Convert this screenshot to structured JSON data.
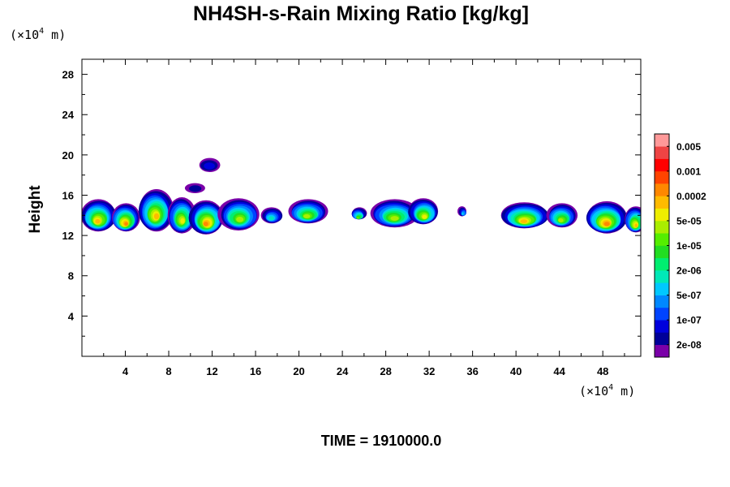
{
  "chart_data": {
    "type": "heatmap",
    "title": "NH4SH-s-Rain Mixing Ratio [kg/kg]",
    "ylabel": "Height",
    "x_unit": {
      "prefix": "(×10",
      "exp": "4",
      "suffix": " m)"
    },
    "y_unit": {
      "prefix": "(×10",
      "exp": "4",
      "suffix": " m)"
    },
    "xlim": [
      0,
      51.5
    ],
    "ylim": [
      0,
      29.5
    ],
    "x_ticks": [
      4,
      8,
      12,
      16,
      20,
      24,
      28,
      32,
      36,
      40,
      44,
      48
    ],
    "y_ticks": [
      4,
      8,
      12,
      16,
      20,
      24,
      28
    ],
    "x_minor_step": 2,
    "y_minor_step": 2,
    "time_label": "TIME = 1910000.0",
    "colorbar": {
      "colors": [
        "#7a00a8",
        "#000099",
        "#0000dd",
        "#0044ff",
        "#0088ff",
        "#00c8ff",
        "#00e8b8",
        "#00ee70",
        "#22dd22",
        "#55ee00",
        "#aaee00",
        "#eeee00",
        "#ffbb00",
        "#ff8800",
        "#ff4400",
        "#ff0000",
        "#ee4444",
        "#ff9999"
      ],
      "labels": [
        "2e-08",
        "1e-07",
        "5e-07",
        "2e-06",
        "1e-05",
        "5e-05",
        "0.0002",
        "0.001",
        "0.005"
      ]
    },
    "cells": [
      {
        "x": 1.5,
        "y": 14.0,
        "rx": 1.6,
        "ry": 1.6,
        "level": 12
      },
      {
        "x": 4.0,
        "y": 13.8,
        "rx": 1.3,
        "ry": 1.4,
        "level": 13
      },
      {
        "x": 6.8,
        "y": 14.5,
        "rx": 1.6,
        "ry": 2.1,
        "level": 12
      },
      {
        "x": 9.2,
        "y": 14.0,
        "rx": 1.3,
        "ry": 1.8,
        "level": 11
      },
      {
        "x": 11.5,
        "y": 13.8,
        "rx": 1.6,
        "ry": 1.7,
        "level": 13
      },
      {
        "x": 14.5,
        "y": 14.1,
        "rx": 1.9,
        "ry": 1.6,
        "level": 10
      },
      {
        "x": 17.5,
        "y": 14.0,
        "rx": 1.0,
        "ry": 0.8,
        "level": 6
      },
      {
        "x": 20.8,
        "y": 14.4,
        "rx": 1.8,
        "ry": 1.2,
        "level": 10
      },
      {
        "x": 25.5,
        "y": 14.2,
        "rx": 0.7,
        "ry": 0.6,
        "level": 9
      },
      {
        "x": 28.8,
        "y": 14.2,
        "rx": 2.2,
        "ry": 1.4,
        "level": 10
      },
      {
        "x": 31.5,
        "y": 14.4,
        "rx": 1.4,
        "ry": 1.3,
        "level": 11
      },
      {
        "x": 35.1,
        "y": 14.4,
        "rx": 0.4,
        "ry": 0.5,
        "level": 5
      },
      {
        "x": 40.8,
        "y": 14.0,
        "rx": 2.2,
        "ry": 1.3,
        "level": 12
      },
      {
        "x": 44.2,
        "y": 14.0,
        "rx": 1.4,
        "ry": 1.2,
        "level": 10
      },
      {
        "x": 48.3,
        "y": 13.8,
        "rx": 1.9,
        "ry": 1.6,
        "level": 13
      },
      {
        "x": 51.0,
        "y": 13.6,
        "rx": 1.0,
        "ry": 1.3,
        "level": 12
      },
      {
        "x": 11.8,
        "y": 19.0,
        "rx": 1.0,
        "ry": 0.7,
        "level": 2
      },
      {
        "x": 10.5,
        "y": 16.7,
        "rx": 0.9,
        "ry": 0.5,
        "level": 1
      }
    ]
  }
}
